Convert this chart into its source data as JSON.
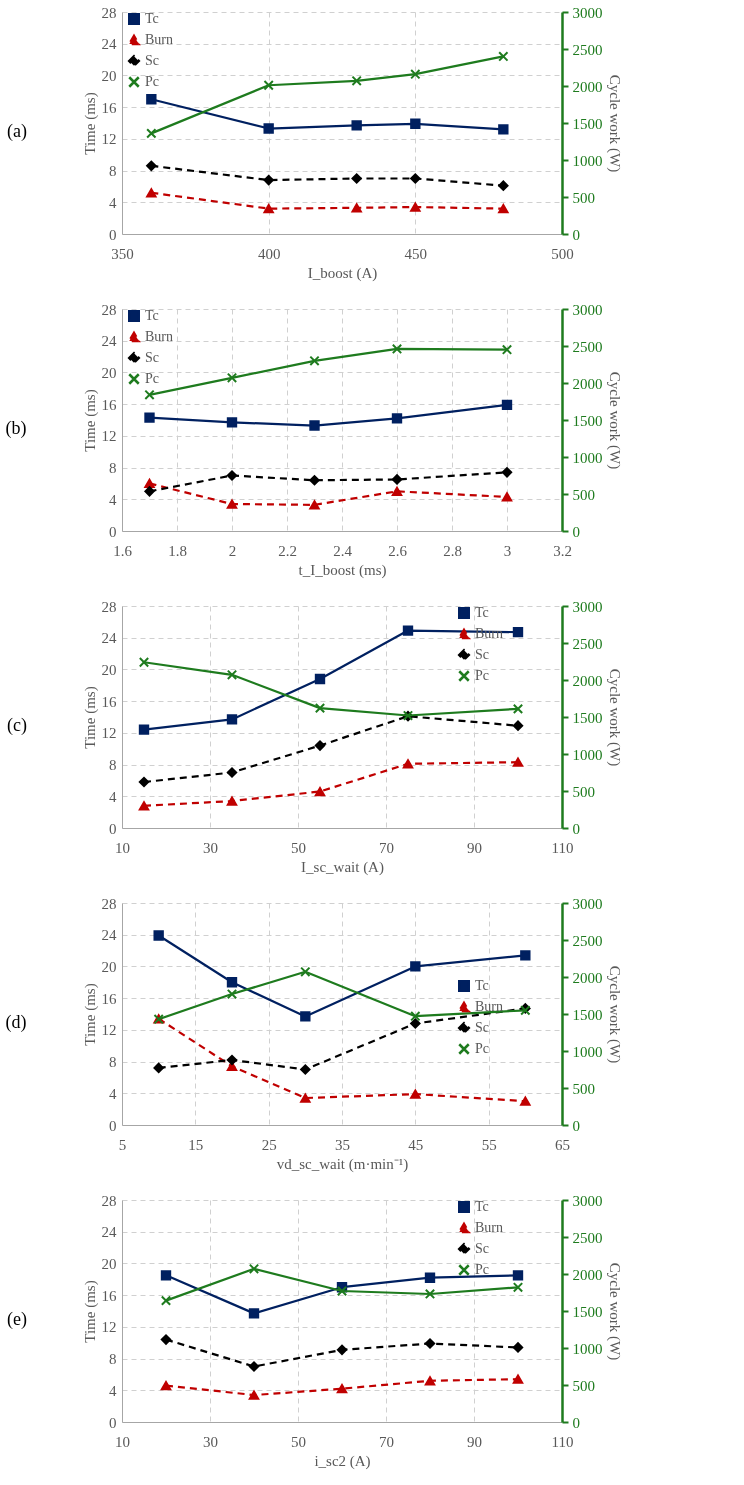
{
  "chart_data": [
    {
      "type": "line",
      "title": "(a)",
      "xlabel": "I_boost (A)",
      "ylabel": "Time (ms)",
      "y2label": "Cycle work (W)",
      "x": [
        360,
        400,
        430,
        450,
        480
      ],
      "xlim": [
        350,
        500
      ],
      "xticks": [
        350,
        400,
        450,
        500
      ],
      "ylim": [
        0,
        28
      ],
      "yticks": [
        0,
        4,
        8,
        12,
        16,
        20,
        24,
        28
      ],
      "y2lim": [
        0,
        3000
      ],
      "y2ticks": [
        0,
        500,
        1000,
        1500,
        2000,
        2500,
        3000
      ],
      "grid": true,
      "legend": "top left",
      "series": [
        {
          "name": "Tc",
          "color": "#002060",
          "marker": "square",
          "line_style": "solid",
          "values": [
            17,
            13.3,
            13.7,
            13.9,
            13.2
          ]
        },
        {
          "name": "Burn",
          "color": "#c00000",
          "marker": "triangle",
          "line_style": "dashed",
          "values": [
            5.2,
            3.2,
            3.3,
            3.4,
            3.2
          ]
        },
        {
          "name": "Sc",
          "color": "#000000",
          "marker": "diamond",
          "line_style": "dashed",
          "values": [
            8.6,
            6.8,
            7.0,
            7.0,
            6.1
          ]
        },
        {
          "name": "Pc",
          "color": "#1e7b1e",
          "marker": "cross",
          "line_style": "solid",
          "axis": "y2",
          "values": [
            1360,
            2010,
            2070,
            2160,
            2400
          ]
        }
      ]
    },
    {
      "type": "line",
      "title": "(b)",
      "xlabel": "t_I_boost (ms)",
      "ylabel": "Time (ms)",
      "y2label": "Cycle work (W)",
      "x": [
        1.7,
        2,
        2.3,
        2.6,
        3
      ],
      "xlim": [
        1.6,
        3.2
      ],
      "xticks": [
        1.6,
        1.8,
        2,
        2.2,
        2.4,
        2.6,
        2.8,
        3,
        3.2
      ],
      "ylim": [
        0,
        28
      ],
      "yticks": [
        0,
        4,
        8,
        12,
        16,
        20,
        24,
        28
      ],
      "y2lim": [
        0,
        3000
      ],
      "y2ticks": [
        0,
        500,
        1000,
        1500,
        2000,
        2500,
        3000
      ],
      "grid": true,
      "legend": "top left",
      "series": [
        {
          "name": "Tc",
          "color": "#002060",
          "marker": "square",
          "line_style": "solid",
          "values": [
            14.3,
            13.7,
            13.3,
            14.2,
            15.9
          ]
        },
        {
          "name": "Burn",
          "color": "#c00000",
          "marker": "triangle",
          "line_style": "dashed",
          "values": [
            6.0,
            3.4,
            3.3,
            5.0,
            4.3
          ]
        },
        {
          "name": "Sc",
          "color": "#000000",
          "marker": "diamond",
          "line_style": "dashed",
          "values": [
            5.0,
            7.0,
            6.4,
            6.5,
            7.4
          ]
        },
        {
          "name": "Pc",
          "color": "#1e7b1e",
          "marker": "cross",
          "line_style": "solid",
          "axis": "y2",
          "values": [
            1840,
            2070,
            2300,
            2460,
            2450
          ]
        }
      ]
    },
    {
      "type": "line",
      "title": "(c)",
      "xlabel": "I_sc_wait (A)",
      "ylabel": "Time (ms)",
      "y2label": "Cycle work (W)",
      "x": [
        15,
        35,
        55,
        75,
        100
      ],
      "xlim": [
        10,
        110
      ],
      "xticks": [
        10,
        30,
        50,
        70,
        90,
        110
      ],
      "ylim": [
        0,
        28
      ],
      "yticks": [
        0,
        4,
        8,
        12,
        16,
        20,
        24,
        28
      ],
      "y2lim": [
        0,
        3000
      ],
      "y2ticks": [
        0,
        500,
        1000,
        1500,
        2000,
        2500,
        3000
      ],
      "grid": true,
      "legend": "top right",
      "series": [
        {
          "name": "Tc",
          "color": "#002060",
          "marker": "square",
          "line_style": "solid",
          "values": [
            12.4,
            13.7,
            18.8,
            24.9,
            24.7
          ]
        },
        {
          "name": "Burn",
          "color": "#c00000",
          "marker": "triangle",
          "line_style": "dashed",
          "values": [
            2.8,
            3.4,
            4.6,
            8.1,
            8.3
          ]
        },
        {
          "name": "Sc",
          "color": "#000000",
          "marker": "diamond",
          "line_style": "dashed",
          "values": [
            5.8,
            7.0,
            10.4,
            14.1,
            12.9
          ]
        },
        {
          "name": "Pc",
          "color": "#1e7b1e",
          "marker": "cross",
          "line_style": "solid",
          "axis": "y2",
          "values": [
            2240,
            2070,
            1620,
            1520,
            1610
          ]
        }
      ]
    },
    {
      "type": "line",
      "title": "(d)",
      "xlabel": "vd_sc_wait (m·min⁻¹)",
      "ylabel": "Time (ms)",
      "y2label": "Cycle work (W)",
      "x": [
        10,
        20,
        30,
        45,
        60
      ],
      "xlim": [
        5,
        65
      ],
      "xticks": [
        5,
        15,
        25,
        35,
        45,
        55,
        65
      ],
      "ylim": [
        0,
        28
      ],
      "yticks": [
        0,
        4,
        8,
        12,
        16,
        20,
        24,
        28
      ],
      "y2lim": [
        0,
        3000
      ],
      "y2ticks": [
        0,
        500,
        1000,
        1500,
        2000,
        2500,
        3000
      ],
      "grid": true,
      "legend": "right",
      "series": [
        {
          "name": "Tc",
          "color": "#002060",
          "marker": "square",
          "line_style": "solid",
          "values": [
            23.9,
            18.0,
            13.7,
            20.0,
            21.4
          ]
        },
        {
          "name": "Burn",
          "color": "#c00000",
          "marker": "triangle",
          "line_style": "dashed",
          "values": [
            13.4,
            7.4,
            3.4,
            3.9,
            3.0
          ]
        },
        {
          "name": "Sc",
          "color": "#000000",
          "marker": "diamond",
          "line_style": "dashed",
          "values": [
            7.2,
            8.2,
            7.0,
            12.8,
            14.7
          ]
        },
        {
          "name": "Pc",
          "color": "#1e7b1e",
          "marker": "cross",
          "line_style": "solid",
          "axis": "y2",
          "values": [
            1430,
            1770,
            2070,
            1470,
            1550
          ]
        }
      ]
    },
    {
      "type": "line",
      "title": "(e)",
      "xlabel": "i_sc2 (A)",
      "ylabel": "Time (ms)",
      "y2label": "Cycle work (W)",
      "x": [
        20,
        40,
        60,
        80,
        100
      ],
      "xlim": [
        10,
        110
      ],
      "xticks": [
        10,
        30,
        50,
        70,
        90,
        110
      ],
      "ylim": [
        0,
        28
      ],
      "yticks": [
        0,
        4,
        8,
        12,
        16,
        20,
        24,
        28
      ],
      "y2lim": [
        0,
        3000
      ],
      "y2ticks": [
        0,
        500,
        1000,
        1500,
        2000,
        2500,
        3000
      ],
      "grid": true,
      "legend": "top right",
      "series": [
        {
          "name": "Tc",
          "color": "#002060",
          "marker": "square",
          "line_style": "solid",
          "values": [
            18.5,
            13.7,
            17.0,
            18.2,
            18.5
          ]
        },
        {
          "name": "Burn",
          "color": "#c00000",
          "marker": "triangle",
          "line_style": "dashed",
          "values": [
            4.6,
            3.4,
            4.2,
            5.2,
            5.4
          ]
        },
        {
          "name": "Sc",
          "color": "#000000",
          "marker": "diamond",
          "line_style": "dashed",
          "values": [
            10.4,
            7.0,
            9.1,
            9.9,
            9.4
          ]
        },
        {
          "name": "Pc",
          "color": "#1e7b1e",
          "marker": "cross",
          "line_style": "solid",
          "axis": "y2",
          "values": [
            1640,
            2070,
            1770,
            1730,
            1820
          ]
        }
      ]
    }
  ]
}
